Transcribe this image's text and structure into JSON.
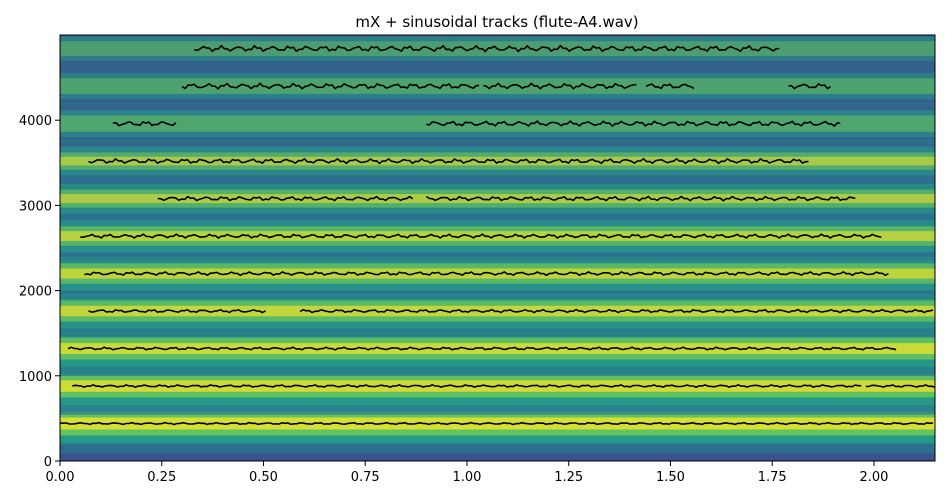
{
  "chart_data": {
    "type": "heatmap",
    "title": "mX + sinusoidal tracks (flute-A4.wav)",
    "xlabel": "",
    "ylabel": "",
    "xlim": [
      0,
      2.15
    ],
    "ylim": [
      0,
      5000
    ],
    "x_ticks": [
      "0.00",
      "0.25",
      "0.50",
      "0.75",
      "1.00",
      "1.25",
      "1.50",
      "1.75",
      "2.00"
    ],
    "x_tick_values": [
      0,
      0.25,
      0.5,
      0.75,
      1.0,
      1.25,
      1.5,
      1.75,
      2.0
    ],
    "y_ticks": [
      "0",
      "1000",
      "2000",
      "3000",
      "4000"
    ],
    "y_tick_values": [
      0,
      1000,
      2000,
      3000,
      4000
    ],
    "colormap": "viridis",
    "grid": false,
    "track_color": "#000000",
    "harmonic_bands": [
      {
        "freq": 440,
        "strength": 1.0
      },
      {
        "freq": 880,
        "strength": 0.92
      },
      {
        "freq": 1320,
        "strength": 0.85
      },
      {
        "freq": 1760,
        "strength": 0.78
      },
      {
        "freq": 2200,
        "strength": 0.72
      },
      {
        "freq": 2640,
        "strength": 0.66
      },
      {
        "freq": 3080,
        "strength": 0.55
      },
      {
        "freq": 3520,
        "strength": 0.5
      },
      {
        "freq": 3960,
        "strength": 0.42
      },
      {
        "freq": 4400,
        "strength": 0.36
      },
      {
        "freq": 4840,
        "strength": 0.3
      }
    ],
    "tracks": [
      {
        "freq": 440,
        "segments": [
          [
            0.0,
            2.15
          ]
        ]
      },
      {
        "freq": 880,
        "segments": [
          [
            0.03,
            1.97
          ],
          [
            1.98,
            2.15
          ]
        ]
      },
      {
        "freq": 1320,
        "segments": [
          [
            0.02,
            2.06
          ]
        ]
      },
      {
        "freq": 1760,
        "segments": [
          [
            0.07,
            0.51
          ],
          [
            0.59,
            2.15
          ]
        ]
      },
      {
        "freq": 2200,
        "segments": [
          [
            0.06,
            2.04
          ]
        ]
      },
      {
        "freq": 2640,
        "segments": [
          [
            0.05,
            2.02
          ]
        ]
      },
      {
        "freq": 3080,
        "segments": [
          [
            0.24,
            0.87
          ],
          [
            0.9,
            1.96
          ]
        ]
      },
      {
        "freq": 3520,
        "segments": [
          [
            0.07,
            1.84
          ]
        ]
      },
      {
        "freq": 3960,
        "segments": [
          [
            0.13,
            0.29
          ],
          [
            0.9,
            1.92
          ]
        ]
      },
      {
        "freq": 4400,
        "segments": [
          [
            0.3,
            1.03
          ],
          [
            1.04,
            1.42
          ],
          [
            1.44,
            1.56
          ],
          [
            1.79,
            1.9
          ]
        ]
      },
      {
        "freq": 4840,
        "segments": [
          [
            0.33,
            1.77
          ]
        ]
      }
    ]
  }
}
